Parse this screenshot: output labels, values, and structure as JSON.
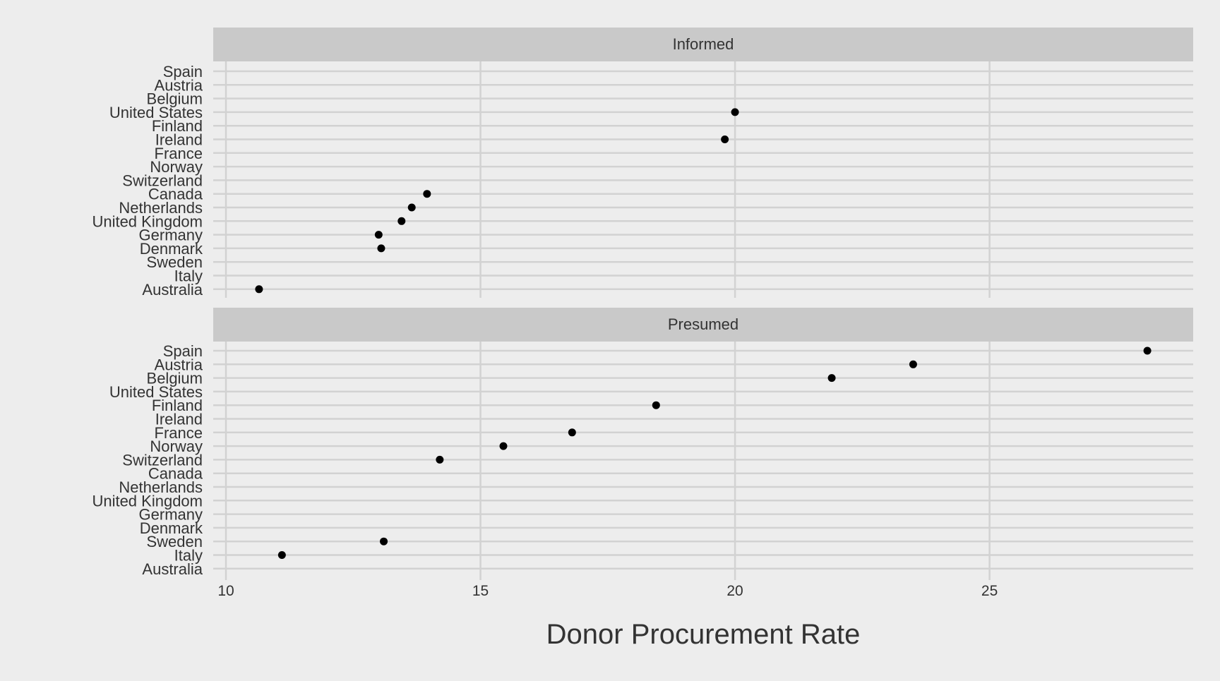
{
  "chart_data": {
    "type": "scatter",
    "facet_labels": [
      "Informed",
      "Presumed"
    ],
    "xlabel": "Donor Procurement Rate",
    "ylabel": "",
    "xlim": [
      9.75,
      29
    ],
    "x_ticks": [
      10,
      15,
      20,
      25
    ],
    "grid": true,
    "categories": [
      "Spain",
      "Austria",
      "Belgium",
      "United States",
      "Finland",
      "Ireland",
      "France",
      "Norway",
      "Switzerland",
      "Canada",
      "Netherlands",
      "United Kingdom",
      "Germany",
      "Denmark",
      "Sweden",
      "Italy",
      "Australia"
    ],
    "panels": [
      {
        "name": "Informed",
        "points": [
          {
            "category": "United States",
            "value": 20.0
          },
          {
            "category": "Ireland",
            "value": 19.8
          },
          {
            "category": "Canada",
            "value": 13.95
          },
          {
            "category": "Netherlands",
            "value": 13.65
          },
          {
            "category": "United Kingdom",
            "value": 13.45
          },
          {
            "category": "Germany",
            "value": 13.0
          },
          {
            "category": "Denmark",
            "value": 13.05
          },
          {
            "category": "Australia",
            "value": 10.65
          }
        ]
      },
      {
        "name": "Presumed",
        "points": [
          {
            "category": "Spain",
            "value": 28.1
          },
          {
            "category": "Austria",
            "value": 23.5
          },
          {
            "category": "Belgium",
            "value": 21.9
          },
          {
            "category": "Finland",
            "value": 18.45
          },
          {
            "category": "France",
            "value": 16.8
          },
          {
            "category": "Norway",
            "value": 15.45
          },
          {
            "category": "Switzerland",
            "value": 14.2
          },
          {
            "category": "Sweden",
            "value": 13.1
          },
          {
            "category": "Italy",
            "value": 11.1
          }
        ]
      }
    ],
    "colors": {
      "background": "#ededed",
      "grid": "#d2d2d2",
      "strip": "#c9c9c9",
      "point": "#000000",
      "text": "#333333"
    }
  }
}
